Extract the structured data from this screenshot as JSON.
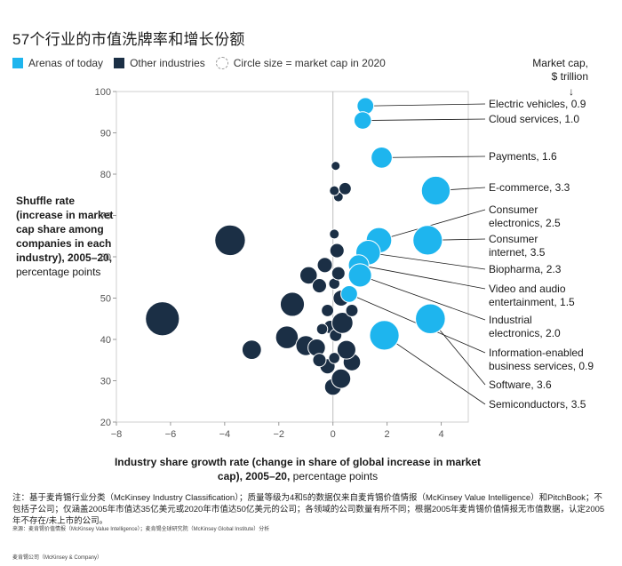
{
  "title": "57个行业的市值洗牌率和增长份额",
  "legend": {
    "arenas": "Arenas of today",
    "other": "Other industries",
    "size": "Circle size = market cap in 2020"
  },
  "market_cap_header": {
    "line1": "Market cap,",
    "line2": "$ trillion",
    "arrow": "↓"
  },
  "ylabel": {
    "bold": "Shuffle rate (increase in market cap share among companies in each industry), 2005–20,",
    "normal": "percentage points"
  },
  "xlabel": {
    "bold": "Industry share growth rate (change in share of global increase in market cap), 2005–20,",
    "normal": "percentage points"
  },
  "note": "注：基于麦肯锡行业分类（McKinsey Industry Classification）；质量等级为4和5的数据仅来自麦肯锡价值情报（McKinsey Value Intelligence）和PitchBook；不包括子公司；仅涵盖2005年市值达35亿美元或2020年市值达50亿美元的公司；各领域的公司数量有所不同；根据2005年麦肯锡价值情报无市值数据，认定2005年不存在/未上市的公司。",
  "source": "来源：麦肯锡价值情报（McKinsey Value Intelligence）；麦肯锡全球研究院（McKinsey Global Institute）分析",
  "footer": "麦肯锡公司（McKinsey & Company）",
  "colors": {
    "arena": "#1eb5ee",
    "other": "#1b2f45",
    "grid": "#dddddd"
  },
  "chart_data": {
    "type": "scatter",
    "xlabel": "Industry share growth rate (change in share of global increase in market cap), 2005–20, percentage points",
    "ylabel": "Shuffle rate (increase in market cap share among companies in each industry), 2005–20, percentage points",
    "xlim": [
      -8,
      5
    ],
    "ylim": [
      20,
      100
    ],
    "xticks": [
      -8,
      -6,
      -4,
      -2,
      0,
      2,
      4
    ],
    "yticks": [
      20,
      30,
      40,
      50,
      60,
      70,
      80,
      90,
      100
    ],
    "size_meaning": "market cap in 2020 ($ trillion)",
    "arenas": [
      {
        "name": "Electric vehicles",
        "label": "Electric vehicles, 0.9",
        "x": 1.2,
        "y": 96.5,
        "cap": 0.9
      },
      {
        "name": "Cloud services",
        "label": "Cloud services, 1.0",
        "x": 1.1,
        "y": 93.0,
        "cap": 1.0
      },
      {
        "name": "Payments",
        "label": "Payments, 1.6",
        "x": 1.8,
        "y": 84.0,
        "cap": 1.6
      },
      {
        "name": "E-commerce",
        "label": "E-commerce, 3.3",
        "x": 3.8,
        "y": 76.0,
        "cap": 3.3
      },
      {
        "name": "Consumer electronics",
        "label": "Consumer electronics, 2.5",
        "x": 1.7,
        "y": 64.0,
        "cap": 2.5
      },
      {
        "name": "Consumer internet",
        "label": "Consumer internet, 3.5",
        "x": 3.5,
        "y": 64.0,
        "cap": 3.5
      },
      {
        "name": "Biopharma",
        "label": "Biopharma, 2.3",
        "x": 1.3,
        "y": 61.0,
        "cap": 2.3
      },
      {
        "name": "Video and audio entertainment",
        "label": "Video and audio entertainment, 1.5",
        "x": 0.95,
        "y": 58.0,
        "cap": 1.5
      },
      {
        "name": "Industrial electronics",
        "label": "Industrial electronics, 2.0",
        "x": 1.0,
        "y": 55.5,
        "cap": 2.0
      },
      {
        "name": "Information-enabled business services",
        "label": "Information-enabled business services, 0.9",
        "x": 0.6,
        "y": 51.0,
        "cap": 0.9
      },
      {
        "name": "Software",
        "label": "Software, 3.6",
        "x": 3.6,
        "y": 45.0,
        "cap": 3.6
      },
      {
        "name": "Semiconductors",
        "label": "Semiconductors, 3.5",
        "x": 1.9,
        "y": 41.0,
        "cap": 3.5
      }
    ],
    "others": [
      {
        "x": -6.3,
        "y": 45.0,
        "cap": 4.8
      },
      {
        "x": -3.8,
        "y": 64.0,
        "cap": 3.8
      },
      {
        "x": -3.0,
        "y": 37.5,
        "cap": 1.3
      },
      {
        "x": -1.7,
        "y": 40.5,
        "cap": 1.9
      },
      {
        "x": -1.5,
        "y": 48.5,
        "cap": 2.2
      },
      {
        "x": -1.0,
        "y": 38.5,
        "cap": 1.4
      },
      {
        "x": -0.6,
        "y": 38.0,
        "cap": 1.0
      },
      {
        "x": -0.9,
        "y": 55.5,
        "cap": 1.0
      },
      {
        "x": -0.3,
        "y": 58.0,
        "cap": 0.7
      },
      {
        "x": -0.5,
        "y": 53.0,
        "cap": 0.6
      },
      {
        "x": -0.2,
        "y": 47.0,
        "cap": 0.4
      },
      {
        "x": -0.1,
        "y": 43.0,
        "cap": 0.5
      },
      {
        "x": -0.2,
        "y": 33.5,
        "cap": 0.7
      },
      {
        "x": 0.0,
        "y": 28.5,
        "cap": 0.9
      },
      {
        "x": 0.3,
        "y": 30.5,
        "cap": 1.3
      },
      {
        "x": 0.7,
        "y": 34.5,
        "cap": 1.0
      },
      {
        "x": 0.5,
        "y": 37.5,
        "cap": 1.2
      },
      {
        "x": 0.1,
        "y": 41.0,
        "cap": 0.4
      },
      {
        "x": 0.35,
        "y": 44.0,
        "cap": 1.6
      },
      {
        "x": 0.3,
        "y": 50.0,
        "cap": 0.8
      },
      {
        "x": 0.05,
        "y": 53.5,
        "cap": 0.3
      },
      {
        "x": 0.2,
        "y": 56.0,
        "cap": 0.5
      },
      {
        "x": 0.15,
        "y": 61.5,
        "cap": 0.6
      },
      {
        "x": 0.05,
        "y": 65.5,
        "cap": 0.2
      },
      {
        "x": 0.2,
        "y": 74.5,
        "cap": 0.2
      },
      {
        "x": 0.05,
        "y": 76.0,
        "cap": 0.2
      },
      {
        "x": 0.45,
        "y": 76.5,
        "cap": 0.4
      },
      {
        "x": 0.1,
        "y": 82.0,
        "cap": 0.15
      },
      {
        "x": -0.5,
        "y": 35.0,
        "cap": 0.5
      },
      {
        "x": 0.05,
        "y": 35.5,
        "cap": 0.3
      },
      {
        "x": 0.7,
        "y": 47.0,
        "cap": 0.4
      },
      {
        "x": -0.4,
        "y": 42.5,
        "cap": 0.3
      }
    ]
  }
}
